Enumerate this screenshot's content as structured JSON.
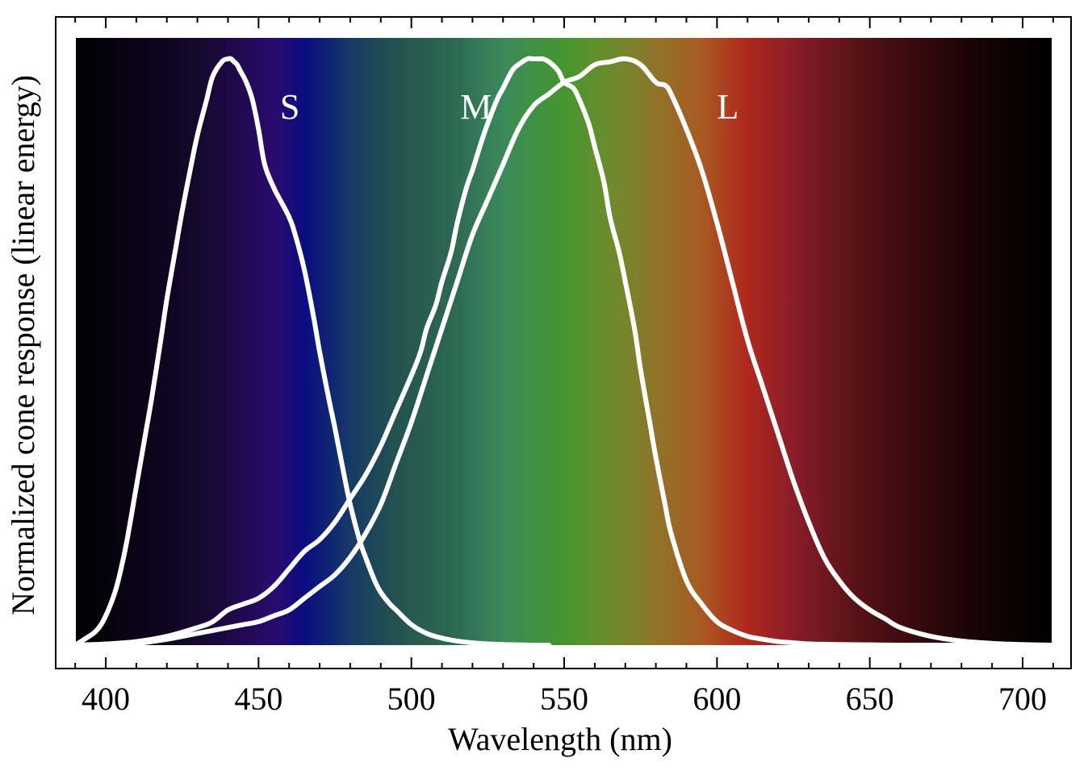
{
  "chart_data": {
    "type": "line",
    "title": "",
    "xlabel": "Wavelength (nm)",
    "ylabel": "Normalized cone response (linear energy)",
    "xlim": [
      380,
      715
    ],
    "ylim": [
      0,
      1
    ],
    "x_ticks": [
      400,
      450,
      500,
      550,
      600,
      650,
      700
    ],
    "y_ticks": [],
    "grid": false,
    "legend": "none",
    "background": "visible spectrum gradient",
    "line_color": "#ffffff",
    "spectrum_stops": [
      {
        "wavelength": 390,
        "color": "#000000"
      },
      {
        "wavelength": 430,
        "color": "#14082c"
      },
      {
        "wavelength": 455,
        "color": "#2a0a6e"
      },
      {
        "wavelength": 465,
        "color": "#0a0d80"
      },
      {
        "wavelength": 480,
        "color": "#163a66"
      },
      {
        "wavelength": 495,
        "color": "#24524f"
      },
      {
        "wavelength": 515,
        "color": "#2e6a54"
      },
      {
        "wavelength": 530,
        "color": "#3b8a5a"
      },
      {
        "wavelength": 550,
        "color": "#459630"
      },
      {
        "wavelength": 565,
        "color": "#6c8c2c"
      },
      {
        "wavelength": 580,
        "color": "#8f7428"
      },
      {
        "wavelength": 595,
        "color": "#a85a22"
      },
      {
        "wavelength": 610,
        "color": "#b0281e"
      },
      {
        "wavelength": 625,
        "color": "#8a1d2a"
      },
      {
        "wavelength": 645,
        "color": "#5a1318"
      },
      {
        "wavelength": 665,
        "color": "#360a0c"
      },
      {
        "wavelength": 690,
        "color": "#120304"
      },
      {
        "wavelength": 710,
        "color": "#000000"
      }
    ],
    "series": [
      {
        "name": "S",
        "x": [
          390,
          393,
          397,
          400,
          403,
          405,
          407,
          410,
          413,
          415,
          418,
          420,
          423,
          425,
          428,
          430,
          433,
          435,
          438,
          440,
          441,
          442,
          443,
          444,
          446,
          448,
          450,
          452,
          455,
          457,
          460,
          462,
          465,
          468,
          470,
          473,
          475,
          478,
          480,
          483,
          485,
          488,
          490,
          493,
          495,
          500,
          505,
          510,
          515,
          520,
          525,
          530,
          535,
          540,
          545
        ],
        "values": [
          0.0,
          0.01,
          0.025,
          0.05,
          0.09,
          0.13,
          0.18,
          0.27,
          0.36,
          0.42,
          0.52,
          0.59,
          0.68,
          0.74,
          0.82,
          0.87,
          0.93,
          0.97,
          0.995,
          1.0,
          1.0,
          0.995,
          0.99,
          0.98,
          0.96,
          0.93,
          0.88,
          0.82,
          0.78,
          0.76,
          0.73,
          0.7,
          0.64,
          0.56,
          0.5,
          0.42,
          0.37,
          0.29,
          0.24,
          0.18,
          0.15,
          0.11,
          0.09,
          0.07,
          0.06,
          0.035,
          0.02,
          0.012,
          0.007,
          0.004,
          0.002,
          0.001,
          0.0005,
          0.0,
          0.0
        ]
      },
      {
        "name": "M",
        "x": [
          390,
          400,
          410,
          420,
          430,
          435,
          440,
          445,
          450,
          455,
          460,
          465,
          470,
          475,
          480,
          485,
          490,
          495,
          500,
          503,
          505,
          508,
          510,
          513,
          515,
          518,
          520,
          523,
          525,
          528,
          530,
          533,
          535,
          538,
          540,
          542,
          543,
          545,
          548,
          550,
          553,
          555,
          558,
          560,
          563,
          565,
          568,
          570,
          573,
          575,
          578,
          580,
          583,
          585,
          590,
          595,
          600,
          605,
          610,
          615,
          620,
          625,
          630,
          635,
          640,
          650,
          660,
          670,
          680,
          690,
          700,
          710
        ],
        "values": [
          0.0,
          0.002,
          0.006,
          0.015,
          0.03,
          0.04,
          0.06,
          0.07,
          0.08,
          0.1,
          0.13,
          0.16,
          0.18,
          0.21,
          0.25,
          0.29,
          0.34,
          0.4,
          0.46,
          0.5,
          0.54,
          0.58,
          0.62,
          0.67,
          0.72,
          0.78,
          0.81,
          0.86,
          0.89,
          0.93,
          0.95,
          0.98,
          0.99,
          1.0,
          1.0,
          1.0,
          1.0,
          0.995,
          0.98,
          0.96,
          0.95,
          0.93,
          0.89,
          0.85,
          0.79,
          0.73,
          0.67,
          0.62,
          0.54,
          0.47,
          0.38,
          0.32,
          0.24,
          0.19,
          0.11,
          0.07,
          0.04,
          0.025,
          0.015,
          0.01,
          0.006,
          0.004,
          0.002,
          0.0015,
          0.001,
          0.0005,
          0.0,
          0.0,
          0.0,
          0.0,
          0.0,
          0.0
        ]
      },
      {
        "name": "L",
        "x": [
          390,
          400,
          410,
          420,
          430,
          440,
          445,
          450,
          455,
          460,
          465,
          470,
          475,
          480,
          485,
          490,
          495,
          500,
          505,
          510,
          515,
          520,
          525,
          530,
          535,
          540,
          545,
          550,
          555,
          560,
          565,
          570,
          575,
          580,
          583,
          585,
          590,
          595,
          600,
          605,
          610,
          615,
          620,
          625,
          630,
          635,
          640,
          645,
          650,
          655,
          660,
          670,
          680,
          690,
          700,
          710
        ],
        "values": [
          0.0,
          0.001,
          0.003,
          0.01,
          0.02,
          0.03,
          0.035,
          0.04,
          0.05,
          0.06,
          0.08,
          0.1,
          0.12,
          0.15,
          0.19,
          0.24,
          0.31,
          0.38,
          0.46,
          0.54,
          0.62,
          0.7,
          0.76,
          0.82,
          0.88,
          0.92,
          0.94,
          0.96,
          0.97,
          0.99,
          0.995,
          1.0,
          0.99,
          0.96,
          0.955,
          0.94,
          0.88,
          0.81,
          0.72,
          0.62,
          0.52,
          0.44,
          0.36,
          0.28,
          0.21,
          0.15,
          0.11,
          0.08,
          0.06,
          0.045,
          0.03,
          0.015,
          0.007,
          0.003,
          0.001,
          0.0
        ]
      }
    ],
    "series_labels": [
      {
        "text": "S",
        "x": 457,
        "y": 0.92
      },
      {
        "text": "M",
        "x": 516,
        "y": 0.92
      },
      {
        "text": "L",
        "x": 600,
        "y": 0.92
      }
    ]
  }
}
